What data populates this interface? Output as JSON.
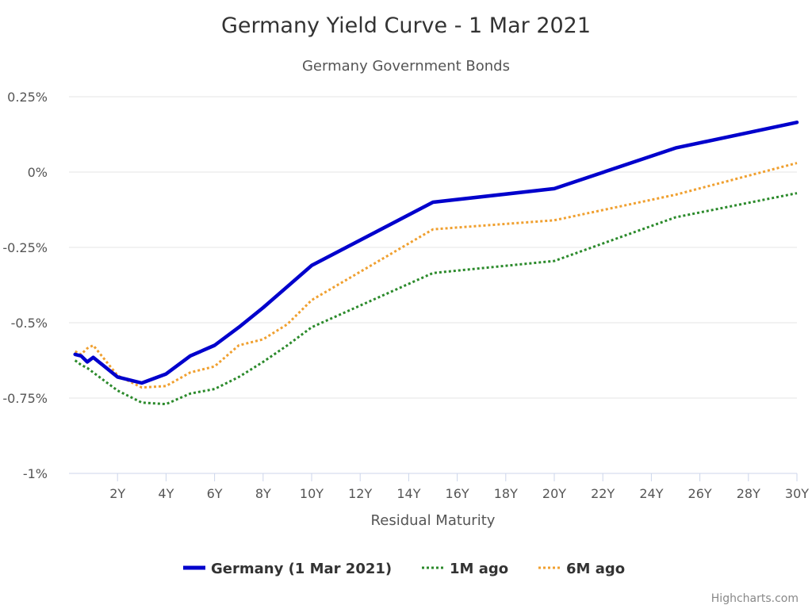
{
  "chart_data": {
    "type": "line",
    "title": "Germany Yield Curve - 1 Mar 2021",
    "subtitle": "Germany Government Bonds",
    "xlabel": "Residual Maturity",
    "ylabel": "",
    "x_unit": "years",
    "xlim": [
      0,
      30
    ],
    "ylim": [
      -1,
      0.25
    ],
    "x_ticks": [
      {
        "value": 2,
        "label": "2Y"
      },
      {
        "value": 4,
        "label": "4Y"
      },
      {
        "value": 6,
        "label": "6Y"
      },
      {
        "value": 8,
        "label": "8Y"
      },
      {
        "value": 10,
        "label": "10Y"
      },
      {
        "value": 12,
        "label": "12Y"
      },
      {
        "value": 14,
        "label": "14Y"
      },
      {
        "value": 16,
        "label": "16Y"
      },
      {
        "value": 18,
        "label": "18Y"
      },
      {
        "value": 20,
        "label": "20Y"
      },
      {
        "value": 22,
        "label": "22Y"
      },
      {
        "value": 24,
        "label": "24Y"
      },
      {
        "value": 26,
        "label": "26Y"
      },
      {
        "value": 28,
        "label": "28Y"
      },
      {
        "value": 30,
        "label": "30Y"
      }
    ],
    "y_ticks": [
      {
        "value": 0.25,
        "label": "0.25%"
      },
      {
        "value": 0,
        "label": "0%"
      },
      {
        "value": -0.25,
        "label": "-0.25%"
      },
      {
        "value": -0.5,
        "label": "-0.5%"
      },
      {
        "value": -0.75,
        "label": "-0.75%"
      },
      {
        "value": -1,
        "label": "-1%"
      }
    ],
    "grid": true,
    "legend_position": "bottom-center",
    "series": [
      {
        "name": "Germany (1 Mar 2021)",
        "color": "#0000cc",
        "style": "solid",
        "x": [
          0.25,
          0.5,
          0.75,
          1,
          2,
          3,
          4,
          5,
          6,
          7,
          8,
          9,
          10,
          15,
          20,
          25,
          30
        ],
        "y": [
          -0.605,
          -0.61,
          -0.63,
          -0.615,
          -0.68,
          -0.7,
          -0.67,
          -0.61,
          -0.575,
          -0.515,
          -0.45,
          -0.38,
          -0.31,
          -0.1,
          -0.055,
          0.08,
          0.165
        ]
      },
      {
        "name": "1M ago",
        "color": "#2b8a2b",
        "style": "dotted",
        "x": [
          0.25,
          0.5,
          0.75,
          1,
          2,
          3,
          4,
          5,
          6,
          7,
          8,
          9,
          10,
          15,
          20,
          25,
          30
        ],
        "y": [
          -0.625,
          -0.64,
          -0.65,
          -0.665,
          -0.725,
          -0.765,
          -0.77,
          -0.735,
          -0.72,
          -0.68,
          -0.63,
          -0.575,
          -0.515,
          -0.335,
          -0.295,
          -0.15,
          -0.07
        ]
      },
      {
        "name": "6M ago",
        "color": "#f0a030",
        "style": "dotted",
        "x": [
          0.25,
          0.5,
          0.75,
          1,
          2,
          3,
          4,
          5,
          6,
          7,
          8,
          9,
          10,
          15,
          20,
          25,
          30
        ],
        "y": [
          -0.595,
          -0.605,
          -0.585,
          -0.575,
          -0.675,
          -0.715,
          -0.71,
          -0.665,
          -0.645,
          -0.575,
          -0.555,
          -0.505,
          -0.425,
          -0.19,
          -0.16,
          -0.075,
          0.03
        ]
      }
    ]
  },
  "credits": "Highcharts.com"
}
